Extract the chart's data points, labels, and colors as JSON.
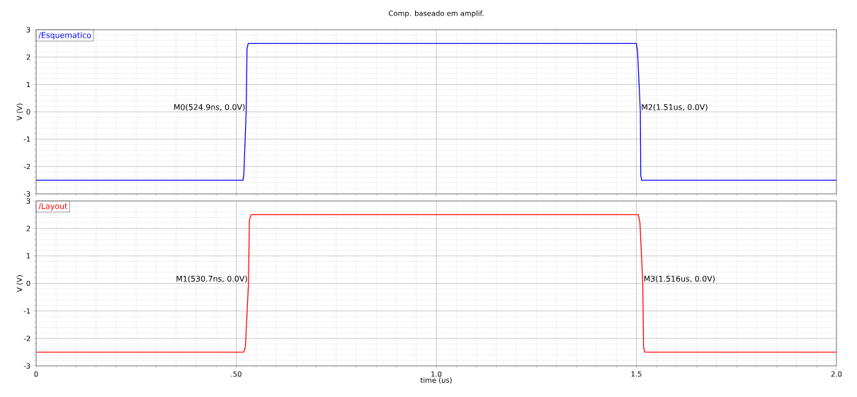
{
  "chart_data": [
    {
      "type": "line",
      "title": "Comp. baseado em amplif.",
      "ylabel": "V (V)",
      "xlim": [
        0,
        2
      ],
      "ylim": [
        -3,
        3
      ],
      "xticks": [
        0,
        0.5,
        1,
        1.5,
        2
      ],
      "yticks": [
        -3,
        -2,
        -1,
        0,
        1,
        2,
        3
      ],
      "tick_labels": "y",
      "grid": true,
      "legend": "top left",
      "series": [
        {
          "name": "/Esquematico",
          "color": "#0000ff",
          "x": [
            0,
            0.517,
            0.519,
            0.5249,
            0.527,
            0.53,
            1.5,
            1.503,
            1.51,
            1.511,
            1.513,
            2
          ],
          "values": [
            -2.5,
            -2.5,
            -2.3,
            0,
            2.3,
            2.5,
            2.5,
            2.2,
            0,
            -2.3,
            -2.5,
            -2.5
          ]
        }
      ],
      "annotations": [
        {
          "text": "M0(524.9ns, 0.0V)",
          "x": 0.5249,
          "y": 0
        },
        {
          "text": "M2(1.51us, 0.0V)",
          "x": 1.51,
          "y": 0
        }
      ]
    },
    {
      "type": "line",
      "xlabel": "time (us)",
      "ylabel": "V (V)",
      "xlim": [
        0,
        2
      ],
      "ylim": [
        -3,
        3
      ],
      "xticks": [
        0,
        {
          "value": 0.5,
          "label": ".50"
        },
        {
          "value": 1,
          "label": "1.0"
        },
        {
          "value": 1.5,
          "label": "1.5"
        },
        {
          "value": 2,
          "label": "2.0"
        }
      ],
      "yticks": [
        -3,
        -2,
        -1,
        0,
        1,
        2,
        3
      ],
      "grid": true,
      "legend": "top left",
      "series": [
        {
          "name": "/Layout",
          "color": "#ff0000",
          "x": [
            0,
            0.519,
            0.523,
            0.5307,
            0.533,
            0.537,
            1.505,
            1.509,
            1.516,
            1.518,
            1.521,
            2
          ],
          "values": [
            -2.5,
            -2.5,
            -2.3,
            0,
            2.3,
            2.5,
            2.5,
            2.2,
            0,
            -2.3,
            -2.5,
            -2.5
          ]
        }
      ],
      "annotations": [
        {
          "text": "M1(530.7ns, 0.0V)",
          "x": 0.5307,
          "y": 0
        },
        {
          "text": "M3(1.516us, 0.0V)",
          "x": 1.516,
          "y": 0
        }
      ]
    }
  ]
}
